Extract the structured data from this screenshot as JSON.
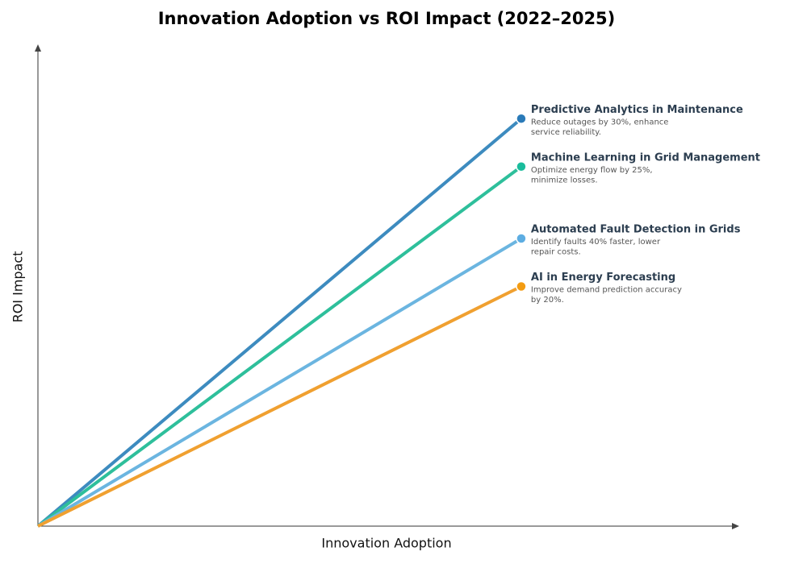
{
  "chart_data": {
    "type": "line",
    "title": "Innovation Adoption vs ROI Impact (2022–2025)",
    "xlabel": "Innovation Adoption",
    "ylabel": "ROI Impact",
    "xlim": [
      0,
      1
    ],
    "ylim": [
      0,
      1
    ],
    "series": [
      {
        "name": "Predictive Analytics in Maintenance",
        "description": [
          "Reduce outages by 30%, enhance",
          "service reliability."
        ],
        "color": "#3d8bbf",
        "marker_color": "#2a7ab8",
        "x": [
          0,
          0.69
        ],
        "y": [
          0,
          0.85
        ]
      },
      {
        "name": "Machine Learning in Grid Management",
        "description": [
          "Optimize energy flow by 25%,",
          "minimize losses."
        ],
        "color": "#2ebf9b",
        "marker_color": "#1abc9c",
        "x": [
          0,
          0.69
        ],
        "y": [
          0,
          0.75
        ]
      },
      {
        "name": "Automated Fault Detection in Grids",
        "description": [
          "Identify faults 40% faster, lower",
          "repair costs."
        ],
        "color": "#6bb5e0",
        "marker_color": "#5dade2",
        "x": [
          0,
          0.69
        ],
        "y": [
          0,
          0.6
        ]
      },
      {
        "name": "AI in Energy Forecasting",
        "description": [
          "Improve demand prediction accuracy",
          "by 20%."
        ],
        "color": "#f0a030",
        "marker_color": "#f39c12",
        "x": [
          0,
          0.69
        ],
        "y": [
          0,
          0.5
        ]
      }
    ]
  }
}
